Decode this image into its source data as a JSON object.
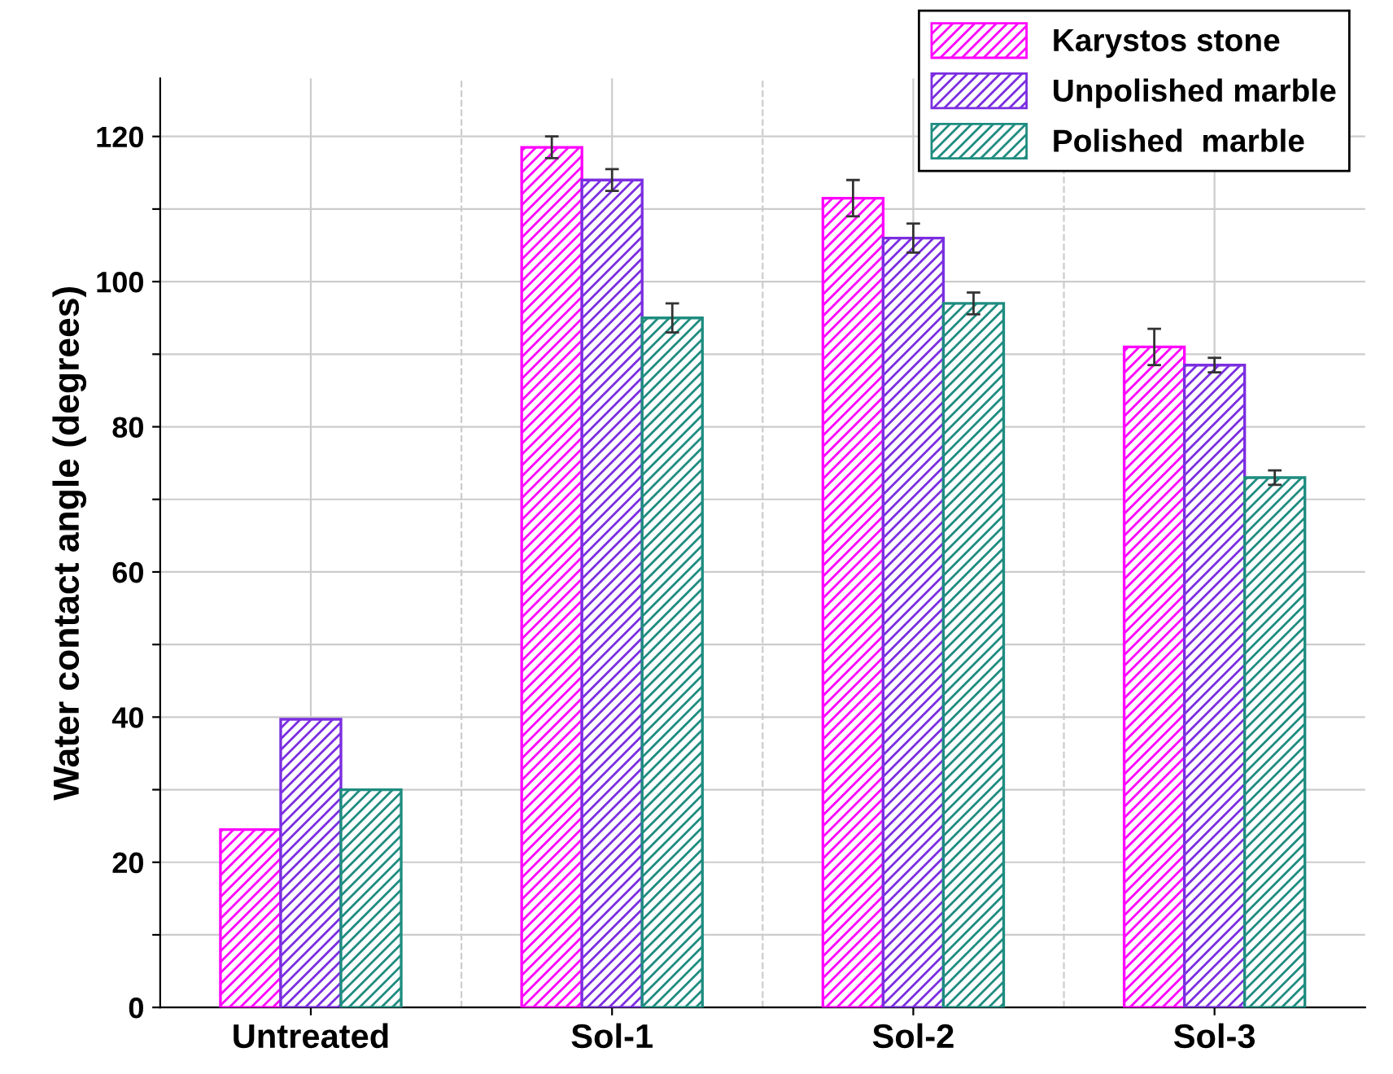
{
  "chart_data": {
    "type": "bar",
    "ylabel": "Water contact angle (degrees)",
    "categories": [
      "Untreated",
      "Sol-1",
      "Sol-2",
      "Sol-3"
    ],
    "series": [
      {
        "name": "Karystos stone",
        "color": "#ff00ff",
        "values": [
          24.5,
          118.5,
          111.5,
          91
        ],
        "errors": [
          null,
          1.5,
          2.5,
          2.5
        ]
      },
      {
        "name": "Unpolished marble",
        "color": "#7b2ee0",
        "values": [
          39.7,
          114,
          106,
          88.5
        ],
        "errors": [
          null,
          1.5,
          2,
          1
        ]
      },
      {
        "name": "Polished  marble",
        "color": "#1f8c80",
        "values": [
          30,
          95,
          97,
          73
        ],
        "errors": [
          null,
          2,
          1.5,
          1
        ]
      }
    ],
    "ylim": [
      0,
      128
    ],
    "yticks": [
      0,
      {
        "value": 10,
        "label": null
      },
      20,
      {
        "value": 30,
        "label": null
      },
      40,
      {
        "value": 50,
        "label": null
      },
      60,
      {
        "value": 70,
        "label": null
      },
      80,
      {
        "value": 90,
        "label": null
      },
      100,
      {
        "value": 110,
        "label": null
      },
      120
    ],
    "grid": true,
    "legend": "top right"
  }
}
